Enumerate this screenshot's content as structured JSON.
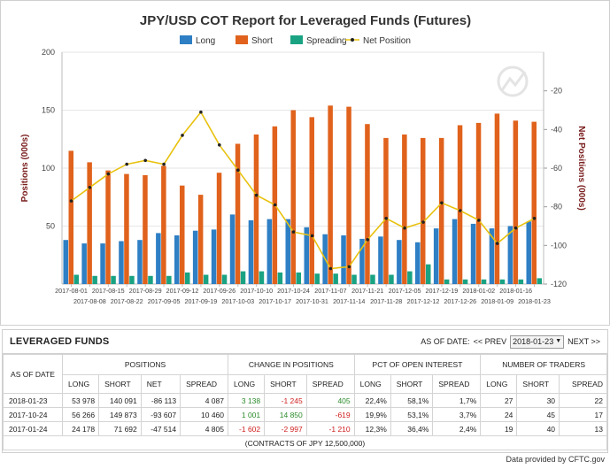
{
  "chart_data": {
    "type": "bar",
    "title": "JPY/USD COT Report for Leveraged Funds (Futures)",
    "ylabel": "Positions (000s)",
    "y2label": "Net Positions (000s)",
    "ylim": [
      0,
      200
    ],
    "yticks": [
      50,
      100,
      150,
      200
    ],
    "y2lim": [
      -120,
      0
    ],
    "y2ticks": [
      -20,
      -40,
      -60,
      -80,
      -100,
      -120
    ],
    "legend_position": "top",
    "categories": [
      "2017-08-01",
      "2017-08-08",
      "2017-08-15",
      "2017-08-22",
      "2017-08-29",
      "2017-09-05",
      "2017-09-12",
      "2017-09-19",
      "2017-09-26",
      "2017-10-03",
      "2017-10-10",
      "2017-10-17",
      "2017-10-24",
      "2017-10-31",
      "2017-11-07",
      "2017-11-14",
      "2017-11-21",
      "2017-11-28",
      "2017-12-05",
      "2017-12-12",
      "2017-12-19",
      "2017-12-26",
      "2018-01-02",
      "2018-01-09",
      "2018-01-16",
      "2018-01-23"
    ],
    "series": [
      {
        "name": "Long",
        "kind": "bar",
        "axis": "left",
        "color": "#2e7fc4",
        "values": [
          38,
          35,
          35,
          37,
          38,
          44,
          42,
          46,
          47,
          60,
          55,
          56,
          56,
          49,
          43,
          42,
          39,
          41,
          38,
          36,
          48,
          56,
          52,
          48,
          50,
          54
        ]
      },
      {
        "name": "Short",
        "kind": "bar",
        "axis": "left",
        "color": "#e0621c",
        "values": [
          115,
          105,
          98,
          95,
          94,
          102,
          85,
          77,
          96,
          121,
          129,
          136,
          150,
          144,
          154,
          153,
          138,
          126,
          129,
          126,
          126,
          137,
          139,
          147,
          141,
          140
        ]
      },
      {
        "name": "Spreading",
        "kind": "bar",
        "axis": "left",
        "color": "#1aa383",
        "values": [
          8,
          7,
          7,
          7,
          7,
          7,
          10,
          8,
          8,
          11,
          11,
          10,
          10,
          9,
          9,
          8,
          8,
          8,
          11,
          17,
          4,
          4,
          4,
          4,
          4,
          5
        ]
      },
      {
        "name": "Net Position",
        "kind": "line",
        "axis": "right",
        "color": "#e8c210",
        "values": [
          -77,
          -70,
          -63,
          -58,
          -56,
          -58,
          -43,
          -31,
          -48,
          -61,
          -74,
          -79,
          -93,
          -95,
          -112,
          -111,
          -97,
          -86,
          -91,
          -88,
          -78,
          -82,
          -87,
          -99,
          -91,
          -86
        ]
      }
    ]
  },
  "panel": {
    "title": "LEVERAGED FUNDS",
    "as_of_label": "AS OF DATE:",
    "prev_label": "<< PREV",
    "next_label": "NEXT >>",
    "selected_date": "2018-01-23"
  },
  "table": {
    "as_of_header": "AS OF DATE",
    "groups": [
      "POSITIONS",
      "CHANGE IN POSITIONS",
      "PCT OF OPEN INTEREST",
      "NUMBER OF TRADERS"
    ],
    "positions_cols": [
      "LONG",
      "SHORT",
      "NET",
      "SPREAD"
    ],
    "change_cols": [
      "LONG",
      "SHORT",
      "SPREAD"
    ],
    "pct_cols": [
      "LONG",
      "SHORT",
      "SPREAD"
    ],
    "traders_cols": [
      "LONG",
      "SHORT",
      "SPREAD"
    ],
    "rows": [
      {
        "date": "2018-01-23",
        "p_long": "53 978",
        "p_short": "140 091",
        "p_net": "-86 113",
        "p_spread": "4 087",
        "c_long": "3 138",
        "c_short": "-1 245",
        "c_spread": "405",
        "pct_long": "22,4%",
        "pct_short": "58,1%",
        "pct_spread": "1,7%",
        "t_long": "27",
        "t_short": "30",
        "t_spread": "22"
      },
      {
        "date": "2017-10-24",
        "p_long": "56 266",
        "p_short": "149 873",
        "p_net": "-93 607",
        "p_spread": "10 460",
        "c_long": "1 001",
        "c_short": "14 850",
        "c_spread": "-619",
        "pct_long": "19,9%",
        "pct_short": "53,1%",
        "pct_spread": "3,7%",
        "t_long": "24",
        "t_short": "45",
        "t_spread": "17"
      },
      {
        "date": "2017-01-24",
        "p_long": "24 178",
        "p_short": "71 692",
        "p_net": "-47 514",
        "p_spread": "4 805",
        "c_long": "-1 602",
        "c_short": "-2 997",
        "c_spread": "-1 210",
        "pct_long": "12,3%",
        "pct_short": "36,4%",
        "pct_spread": "2,4%",
        "t_long": "19",
        "t_short": "40",
        "t_spread": "13"
      }
    ],
    "footnote": "(CONTRACTS OF JPY 12,500,000)"
  },
  "footer": "Data provided by CFTC.gov"
}
